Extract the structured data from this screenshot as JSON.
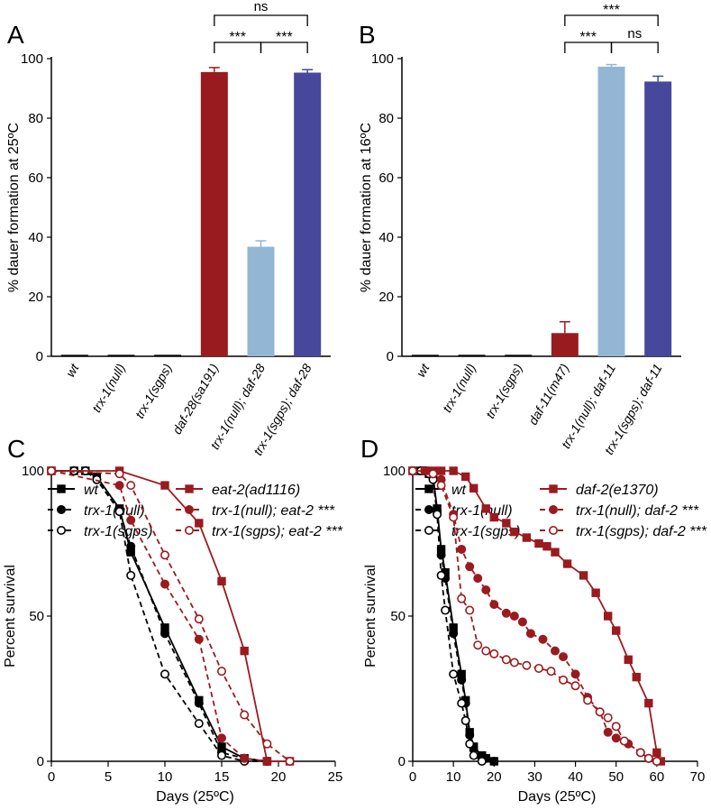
{
  "chart_data": [
    {
      "panel": "A",
      "type": "bar",
      "title": "",
      "ylabel": "% dauer formation at 25ºC",
      "ylim": [
        0,
        100
      ],
      "yticks": [
        "0",
        "20",
        "40",
        "60",
        "80",
        "100"
      ],
      "categories": [
        "wt",
        "trx-1(null)",
        "trx-1(sgps)",
        "daf-28(sa191)",
        "trx-1(null); daf-28",
        "trx-1(sgps); daf-28"
      ],
      "values": [
        0.5,
        0.5,
        0.5,
        95.5,
        36.8,
        95.3
      ],
      "errors": [
        0,
        0,
        0,
        1.5,
        2.0,
        1.0
      ],
      "colors": [
        "#000000",
        "#000000",
        "#000000",
        "#9a1b1f",
        "#93b6d4",
        "#47489b"
      ],
      "significance": [
        {
          "from": 3,
          "to": 5,
          "label": "ns",
          "level": 2
        },
        {
          "from": 3,
          "to": 4,
          "label": "***",
          "level": 1
        },
        {
          "from": 4,
          "to": 5,
          "label": "***",
          "level": 1
        }
      ]
    },
    {
      "panel": "B",
      "type": "bar",
      "title": "",
      "ylabel": "% dauer formation at 16ºC",
      "ylim": [
        0,
        100
      ],
      "yticks": [
        "0",
        "20",
        "40",
        "60",
        "80",
        "100"
      ],
      "categories": [
        "wt",
        "trx-1(null)",
        "trx-1(sgps)",
        "daf-11(m47)",
        "trx-1(null); daf-11",
        "trx-1(sgps); daf-11"
      ],
      "values": [
        0.5,
        0.5,
        0.5,
        7.8,
        97.3,
        92.3
      ],
      "errors": [
        0,
        0,
        0,
        3.8,
        0.7,
        1.8
      ],
      "colors": [
        "#000000",
        "#000000",
        "#000000",
        "#9a1b1f",
        "#93b6d4",
        "#47489b"
      ],
      "significance": [
        {
          "from": 3,
          "to": 5,
          "label": "***",
          "level": 2
        },
        {
          "from": 3,
          "to": 4,
          "label": "***",
          "level": 1
        },
        {
          "from": 4,
          "to": 5,
          "label": "ns",
          "level": 1
        }
      ]
    },
    {
      "panel": "C",
      "type": "line",
      "title": "",
      "xlabel": "Days (25ºC)",
      "ylabel": "Percent survival",
      "xlim": [
        0,
        25
      ],
      "ylim": [
        0,
        100
      ],
      "xticks": [
        "0",
        "5",
        "10",
        "15",
        "20",
        "25"
      ],
      "yticks": [
        "0",
        "50",
        "100"
      ],
      "series": [
        {
          "name": "wt",
          "color": "#000000",
          "marker": "square",
          "filled": true,
          "dashed": false,
          "x": [
            0,
            2,
            3,
            4,
            6,
            7,
            10,
            13,
            15,
            17,
            19
          ],
          "y": [
            100,
            100,
            100,
            98,
            87,
            72,
            46,
            21,
            5,
            1,
            0
          ]
        },
        {
          "name": "trx-1(null)",
          "color": "#000000",
          "marker": "circle",
          "filled": true,
          "dashed": true,
          "x": [
            0,
            2,
            3,
            4,
            6,
            7,
            10,
            13,
            15,
            17,
            19
          ],
          "y": [
            100,
            100,
            100,
            97,
            86,
            74,
            44,
            20,
            3,
            1,
            0
          ]
        },
        {
          "name": "trx-1(sgps)",
          "color": "#000000",
          "marker": "circle",
          "filled": false,
          "dashed": true,
          "x": [
            0,
            2,
            3,
            4,
            6,
            7,
            10,
            13,
            15,
            17,
            19
          ],
          "y": [
            100,
            100,
            100,
            97,
            86,
            64,
            30,
            13,
            2,
            0,
            0
          ]
        },
        {
          "name": "eat-2(ad1116)",
          "color": "#9a1b1f",
          "marker": "square",
          "filled": true,
          "dashed": false,
          "x": [
            0,
            6,
            10,
            13,
            15,
            17,
            19,
            21
          ],
          "y": [
            100,
            100,
            95,
            82,
            62,
            38,
            0,
            0
          ]
        },
        {
          "name": "trx-1(null); eat-2 ***",
          "color": "#9a1b1f",
          "marker": "circle",
          "filled": true,
          "dashed": true,
          "x": [
            0,
            6,
            7,
            10,
            13,
            15,
            17,
            19,
            21
          ],
          "y": [
            100,
            95,
            83,
            61,
            42,
            8,
            1,
            0,
            0
          ]
        },
        {
          "name": "trx-1(sgps); eat-2 ***",
          "color": "#9a1b1f",
          "marker": "circle",
          "filled": false,
          "dashed": true,
          "x": [
            0,
            6,
            7,
            10,
            13,
            15,
            17,
            19,
            21
          ],
          "y": [
            100,
            99,
            95,
            71,
            49,
            31,
            16,
            6,
            0
          ]
        }
      ]
    },
    {
      "panel": "D",
      "type": "line",
      "title": "",
      "xlabel": "Days (25ºC)",
      "ylabel": "Percent survival",
      "xlim": [
        0,
        70
      ],
      "ylim": [
        0,
        100
      ],
      "xticks": [
        "0",
        "10",
        "20",
        "30",
        "40",
        "50",
        "60",
        "70"
      ],
      "yticks": [
        "0",
        "50",
        "100"
      ],
      "series": [
        {
          "name": "wt",
          "color": "#000000",
          "marker": "square",
          "filled": true,
          "dashed": false,
          "x": [
            0,
            2,
            3,
            4,
            5,
            6,
            7,
            8,
            10,
            12,
            13,
            14,
            15,
            17,
            18,
            20
          ],
          "y": [
            100,
            100,
            100,
            99,
            98,
            87,
            73,
            65,
            46,
            30,
            21,
            10,
            5,
            2,
            1,
            0
          ]
        },
        {
          "name": "trx-1(null)",
          "color": "#000000",
          "marker": "circle",
          "filled": true,
          "dashed": true,
          "x": [
            0,
            2,
            3,
            4,
            5,
            6,
            7,
            8,
            10,
            12,
            13,
            14,
            15,
            17,
            18,
            20
          ],
          "y": [
            100,
            100,
            100,
            99,
            98,
            86,
            71,
            63,
            44,
            28,
            20,
            9,
            4,
            1,
            1,
            0
          ]
        },
        {
          "name": "trx-1(sgps)",
          "color": "#000000",
          "marker": "circle",
          "filled": false,
          "dashed": true,
          "x": [
            0,
            2,
            3,
            4,
            5,
            6,
            7,
            8,
            10,
            12,
            13,
            14,
            15,
            17
          ],
          "y": [
            100,
            100,
            100,
            99,
            97,
            85,
            64,
            52,
            30,
            20,
            14,
            6,
            2,
            0
          ]
        },
        {
          "name": "daf-2(e1370)",
          "color": "#9a1b1f",
          "marker": "square",
          "filled": true,
          "dashed": false,
          "x": [
            0,
            3,
            5,
            7,
            10,
            13,
            15,
            18,
            20,
            23,
            25,
            28,
            31,
            33,
            35,
            38,
            42,
            45,
            48,
            50,
            53,
            55,
            58,
            60,
            61
          ],
          "y": [
            100,
            100,
            100,
            100,
            100,
            98,
            94,
            87,
            84,
            82,
            79,
            77,
            75,
            74,
            72,
            68,
            64,
            58,
            50,
            45,
            35,
            29,
            20,
            3,
            0
          ]
        },
        {
          "name": "trx-1(null); daf-2 ***",
          "color": "#9a1b1f",
          "marker": "circle",
          "filled": true,
          "dashed": true,
          "x": [
            0,
            5,
            7,
            10,
            12,
            14,
            16,
            18,
            20,
            23,
            25,
            27,
            29,
            32,
            35,
            37,
            40,
            43,
            46,
            48,
            50,
            53,
            56,
            58,
            60
          ],
          "y": [
            100,
            99,
            97,
            85,
            73,
            67,
            63,
            59,
            54,
            51,
            50,
            48,
            44,
            42,
            38,
            36,
            30,
            22,
            17,
            10,
            8,
            6,
            3,
            1,
            0
          ]
        },
        {
          "name": "trx-1(sgps); daf-2 ***",
          "color": "#9a1b1f",
          "marker": "circle",
          "filled": false,
          "dashed": true,
          "x": [
            0,
            5,
            7,
            10,
            12,
            14,
            16,
            18,
            20,
            23,
            25,
            28,
            31,
            34,
            37,
            40,
            43,
            46,
            48,
            50,
            52,
            56,
            58,
            60
          ],
          "y": [
            100,
            99,
            95,
            84,
            56,
            52,
            40,
            38,
            37,
            35,
            34,
            33,
            32,
            31,
            28,
            26,
            21,
            17,
            15,
            12,
            7,
            3,
            1,
            0
          ]
        }
      ]
    }
  ]
}
